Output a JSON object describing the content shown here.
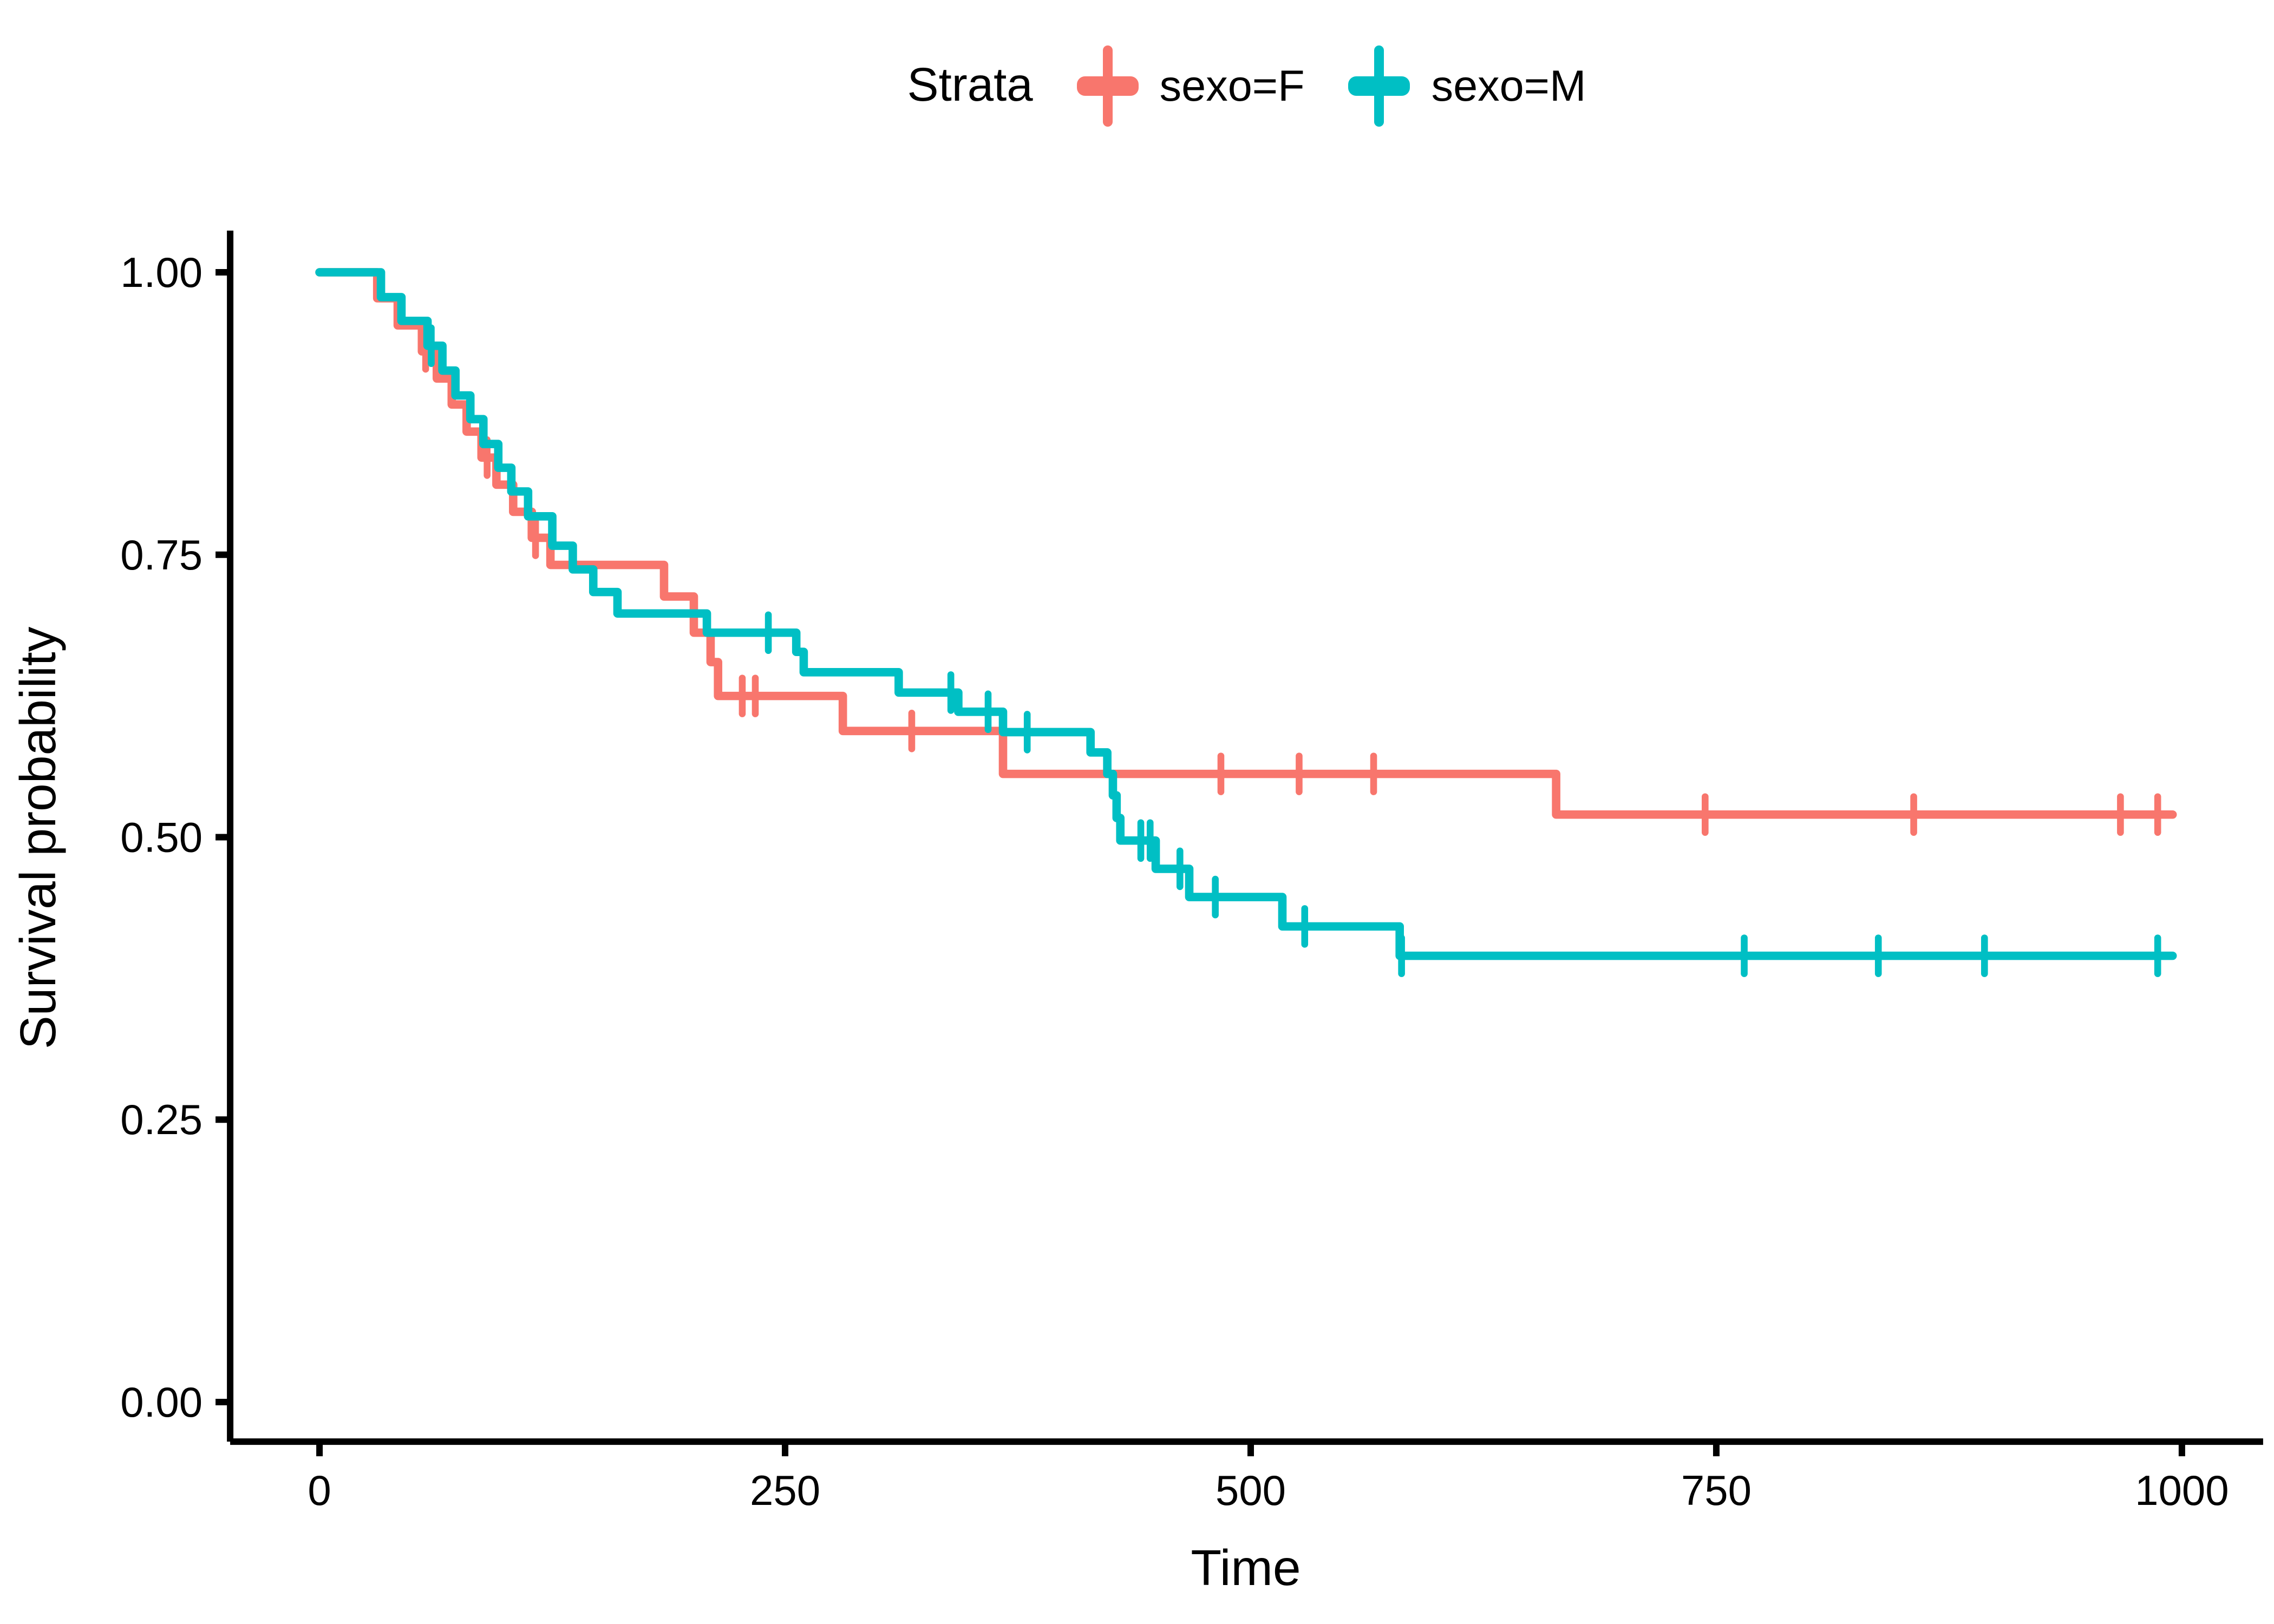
{
  "legend": {
    "title": "Strata",
    "items": [
      {
        "label": "sexo=F",
        "color": "#F8766D"
      },
      {
        "label": "sexo=M",
        "color": "#00BFC4"
      }
    ]
  },
  "axes": {
    "x": {
      "title": "Time",
      "ticks": [
        0,
        250,
        500,
        750,
        1000
      ],
      "tick_labels": [
        "0",
        "250",
        "500",
        "750",
        "1000"
      ]
    },
    "y": {
      "title": "Survival probability",
      "ticks": [
        0.0,
        0.25,
        0.5,
        0.75,
        1.0
      ],
      "tick_labels": [
        "0.00",
        "0.25",
        "0.50",
        "0.75",
        "1.00"
      ]
    }
  },
  "chart_data": {
    "type": "line",
    "subtype": "kaplan-meier-step",
    "title": "",
    "xlabel": "Time",
    "ylabel": "Survival probability",
    "xlim": [
      0,
      1000
    ],
    "ylim": [
      0,
      1
    ],
    "grid": false,
    "legend_position": "top",
    "series": [
      {
        "name": "sexo=F",
        "color": "#F8766D",
        "steps": [
          [
            0,
            1.0
          ],
          [
            31,
            0.977
          ],
          [
            42,
            0.953
          ],
          [
            55,
            0.93
          ],
          [
            63,
            0.906
          ],
          [
            71,
            0.883
          ],
          [
            79,
            0.859
          ],
          [
            87,
            0.836
          ],
          [
            95,
            0.812
          ],
          [
            104,
            0.788
          ],
          [
            114,
            0.765
          ],
          [
            124,
            0.741
          ],
          [
            185,
            0.713
          ],
          [
            201,
            0.681
          ],
          [
            210,
            0.655
          ],
          [
            214,
            0.625
          ],
          [
            281,
            0.594
          ],
          [
            367,
            0.556
          ],
          [
            664,
            0.52
          ]
        ],
        "censor_times": [
          57,
          90,
          116,
          227,
          234,
          318,
          484,
          526,
          566,
          744,
          856,
          967,
          987
        ],
        "end_time": 995
      },
      {
        "name": "sexo=M",
        "color": "#00BFC4",
        "steps": [
          [
            0,
            1.0
          ],
          [
            33,
            0.978
          ],
          [
            44,
            0.957
          ],
          [
            58,
            0.935
          ],
          [
            66,
            0.913
          ],
          [
            73,
            0.891
          ],
          [
            81,
            0.87
          ],
          [
            88,
            0.848
          ],
          [
            96,
            0.827
          ],
          [
            103,
            0.806
          ],
          [
            112,
            0.784
          ],
          [
            125,
            0.758
          ],
          [
            136,
            0.737
          ],
          [
            147,
            0.717
          ],
          [
            160,
            0.698
          ],
          [
            208,
            0.681
          ],
          [
            256,
            0.664
          ],
          [
            260,
            0.646
          ],
          [
            311,
            0.628
          ],
          [
            343,
            0.611
          ],
          [
            367,
            0.593
          ],
          [
            414,
            0.575
          ],
          [
            423,
            0.556
          ],
          [
            426,
            0.537
          ],
          [
            428,
            0.517
          ],
          [
            430,
            0.497
          ],
          [
            449,
            0.472
          ],
          [
            467,
            0.447
          ],
          [
            517,
            0.421
          ],
          [
            580,
            0.395
          ]
        ],
        "censor_times": [
          60,
          241,
          339,
          359,
          380,
          441,
          446,
          462,
          481,
          529,
          581,
          765,
          837,
          894,
          987
        ],
        "end_time": 995
      }
    ]
  }
}
